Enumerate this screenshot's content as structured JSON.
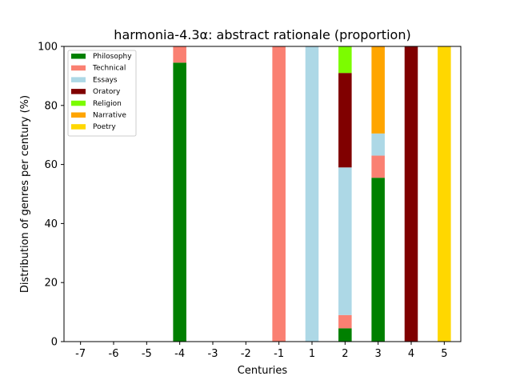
{
  "chart_data": {
    "type": "bar",
    "stacked": true,
    "title": "harmonia-4.3α: abstract rationale (proportion)",
    "xlabel": "Centuries",
    "ylabel": "Distribution of genres per century (%)",
    "ylim": [
      0,
      100
    ],
    "yticks": [
      0,
      20,
      40,
      60,
      80,
      100
    ],
    "categories": [
      "-7",
      "-6",
      "-5",
      "-4",
      "-3",
      "-2",
      "-1",
      "1",
      "2",
      "3",
      "4",
      "5"
    ],
    "grid": false,
    "legend_position": "top-left",
    "series": [
      {
        "name": "Philosophy",
        "color": "#008000",
        "values": [
          0,
          0,
          0,
          94.5,
          0,
          0,
          0,
          0,
          4.5,
          55.5,
          0,
          0
        ]
      },
      {
        "name": "Technical",
        "color": "#fa8072",
        "values": [
          0,
          0,
          0,
          5.5,
          0,
          0,
          100,
          0,
          4.5,
          7.5,
          0,
          0
        ]
      },
      {
        "name": "Essays",
        "color": "#add8e6",
        "values": [
          0,
          0,
          0,
          0,
          0,
          0,
          0,
          100,
          50,
          7.5,
          0,
          0
        ]
      },
      {
        "name": "Oratory",
        "color": "#800000",
        "values": [
          0,
          0,
          0,
          0,
          0,
          0,
          0,
          0,
          32,
          0,
          100,
          0
        ]
      },
      {
        "name": "Religion",
        "color": "#7cfc00",
        "values": [
          0,
          0,
          0,
          0,
          0,
          0,
          0,
          0,
          9,
          0,
          0,
          0
        ]
      },
      {
        "name": "Narrative",
        "color": "#ffa500",
        "values": [
          0,
          0,
          0,
          0,
          0,
          0,
          0,
          0,
          0,
          29.5,
          0,
          0
        ]
      },
      {
        "name": "Poetry",
        "color": "#ffd700",
        "values": [
          0,
          0,
          0,
          0,
          0,
          0,
          0,
          0,
          0,
          0,
          0,
          100
        ]
      }
    ]
  }
}
